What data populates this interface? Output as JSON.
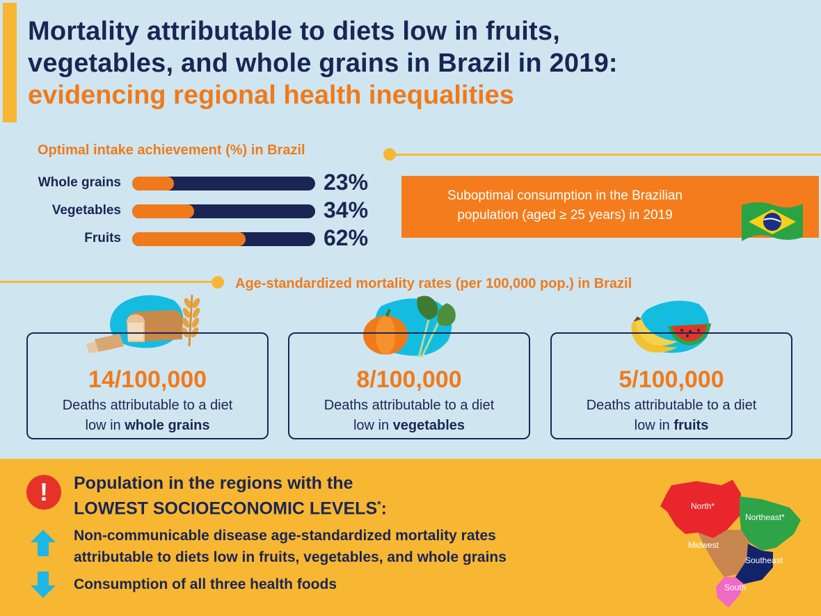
{
  "header": {
    "title_line1": "Mortality attributable to diets low in fruits,",
    "title_line2": "vegetables, and whole grains in Brazil in 2019:",
    "title_line3": "evidencing regional health inequalities"
  },
  "chart_data": {
    "type": "bar",
    "title": "Optimal intake achievement (%) in Brazil",
    "categories": [
      "Whole grains",
      "Vegetables",
      "Fruits"
    ],
    "values": [
      23,
      34,
      62
    ],
    "value_labels": [
      "23%",
      "34%",
      "62%"
    ],
    "ylim": [
      0,
      100
    ]
  },
  "callout": {
    "line1": "Suboptimal consumption in the Brazilian",
    "line2": "population (aged ≥ 25 years) in 2019"
  },
  "mortality": {
    "title": "Age-standardized mortality rates (per 100,000 pop.) in Brazil",
    "cards": [
      {
        "rate": "14/100,000",
        "desc1": "Deaths attributable to a diet",
        "desc2_prefix": "low in ",
        "desc2_bold": "whole grains",
        "icon": "bread-wheat-icon"
      },
      {
        "rate": "8/100,000",
        "desc1": "Deaths attributable to a diet",
        "desc2_prefix": "low in ",
        "desc2_bold": "vegetables",
        "icon": "pumpkin-kale-icon"
      },
      {
        "rate": "5/100,000",
        "desc1": "Deaths attributable to a diet",
        "desc2_prefix": "low in ",
        "desc2_bold": "fruits",
        "icon": "banana-watermelon-icon"
      }
    ]
  },
  "bottom": {
    "alert_glyph": "!",
    "title_line1": "Population in the regions with the",
    "title_line2": "LOWEST SOCIOECONOMIC LEVELS",
    "title_line2_sup": "*",
    "title_line2_suffix": ":",
    "item1_line1": "Non-communicable disease age-standardized mortality rates",
    "item1_line2": "attributable to diets low in fruits, vegetables, and whole grains",
    "item2": "Consumption of all three health foods",
    "map_regions": {
      "north": "North*",
      "northeast": "Northeast*",
      "midwest": "Midwest",
      "southeast": "Southeast",
      "south": "South"
    }
  },
  "colors": {
    "navy": "#1b2553",
    "orange": "#f07a1a",
    "yellow": "#f7b733",
    "background": "#cfe6f1",
    "blob": "#14bde0",
    "alert_red": "#e63329",
    "arrow_blue": "#1fb6e6",
    "map_north": "#e8262c",
    "map_northeast": "#2fa348",
    "map_midwest": "#c8864f",
    "map_southeast": "#12226b",
    "map_south": "#f06bc4"
  }
}
